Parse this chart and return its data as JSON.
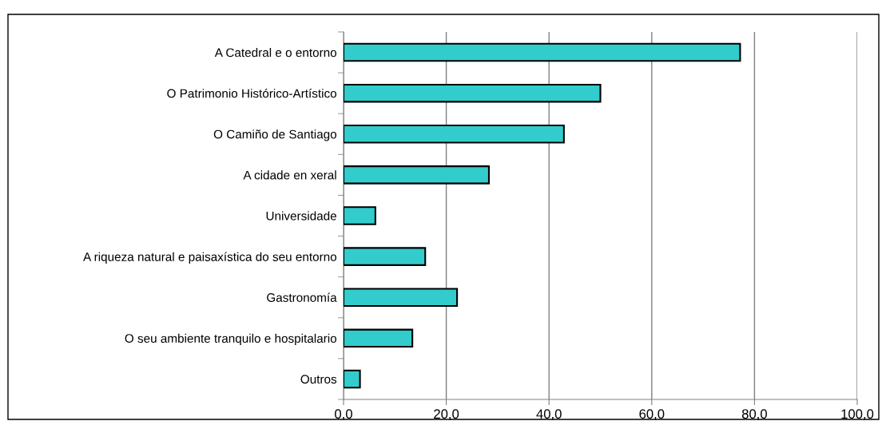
{
  "chart_data": {
    "type": "bar",
    "orientation": "horizontal",
    "categories": [
      "A Catedral e o entorno",
      "O Patrimonio Histórico-Artístico",
      "O Camiño de Santiago",
      "A cidade en xeral",
      "Universidade",
      "A riqueza natural e paisaxística do seu entorno",
      "Gastronomía",
      "O seu ambiente tranquilo e hospitalario",
      "Outros"
    ],
    "values": [
      77.2,
      50.0,
      42.9,
      28.3,
      6.2,
      15.9,
      22.1,
      13.4,
      3.2
    ],
    "color": "#33cccc",
    "xlim": [
      0,
      100
    ],
    "xticks": [
      {
        "value": 0,
        "label": "0,0"
      },
      {
        "value": 20,
        "label": "20,0"
      },
      {
        "value": 40,
        "label": "40,0"
      },
      {
        "value": 60,
        "label": "60,0"
      },
      {
        "value": 80,
        "label": "80,0"
      },
      {
        "value": 100,
        "label": "100,0"
      }
    ],
    "grid": "x"
  }
}
